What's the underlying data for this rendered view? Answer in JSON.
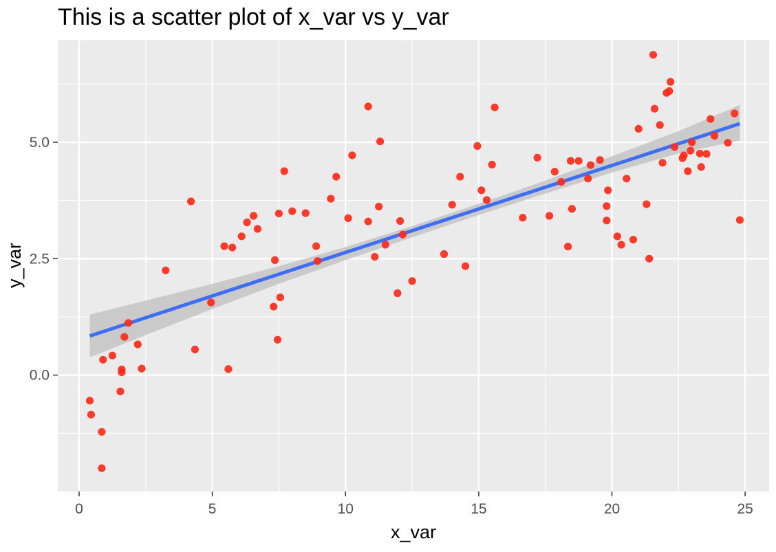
{
  "chart_data": {
    "type": "scatter",
    "title": "This is a scatter plot of x_var vs y_var",
    "xlabel": "x_var",
    "ylabel": "y_var",
    "xlim": [
      -0.8,
      25.9
    ],
    "ylim": [
      -2.5,
      7.2
    ],
    "xticks": [
      0,
      5,
      10,
      15,
      20,
      25
    ],
    "xtick_labels": [
      "0",
      "5",
      "10",
      "15",
      "20",
      "25"
    ],
    "yticks": [
      0,
      2.5,
      5
    ],
    "ytick_labels": [
      "0.0",
      "2.5",
      "5.0"
    ],
    "grid": true,
    "colors": {
      "points": "#ff2a1a",
      "fit_line": "#3d6ef5",
      "confidence_band": "#c4c4c4",
      "panel_background": "#ebebeb",
      "grid": "#ffffff"
    },
    "series": [
      {
        "points": [
          [
            0.4,
            -0.55
          ],
          [
            0.45,
            -0.85
          ],
          [
            0.85,
            -1.22
          ],
          [
            0.85,
            -2.0
          ],
          [
            0.9,
            0.33
          ],
          [
            1.25,
            0.42
          ],
          [
            1.6,
            0.12
          ],
          [
            1.6,
            0.06
          ],
          [
            1.55,
            -0.35
          ],
          [
            1.7,
            0.82
          ],
          [
            1.85,
            1.12
          ],
          [
            2.2,
            0.66
          ],
          [
            2.35,
            0.14
          ],
          [
            3.25,
            2.25
          ],
          [
            4.2,
            3.73
          ],
          [
            4.35,
            0.55
          ],
          [
            4.95,
            1.56
          ],
          [
            5.45,
            2.77
          ],
          [
            5.6,
            0.13
          ],
          [
            5.75,
            2.74
          ],
          [
            6.1,
            2.98
          ],
          [
            6.3,
            3.28
          ],
          [
            6.55,
            3.42
          ],
          [
            6.7,
            3.14
          ],
          [
            7.35,
            2.47
          ],
          [
            7.3,
            1.47
          ],
          [
            7.45,
            0.76
          ],
          [
            7.5,
            3.47
          ],
          [
            7.55,
            1.67
          ],
          [
            7.7,
            4.38
          ],
          [
            8.0,
            3.52
          ],
          [
            8.5,
            3.48
          ],
          [
            8.9,
            2.77
          ],
          [
            8.95,
            2.45
          ],
          [
            9.45,
            3.79
          ],
          [
            9.65,
            4.26
          ],
          [
            10.1,
            3.37
          ],
          [
            10.25,
            4.72
          ],
          [
            10.85,
            3.3
          ],
          [
            10.85,
            5.77
          ],
          [
            11.1,
            2.54
          ],
          [
            11.25,
            3.62
          ],
          [
            11.3,
            5.02
          ],
          [
            11.5,
            2.8
          ],
          [
            11.95,
            1.76
          ],
          [
            12.05,
            3.31
          ],
          [
            12.15,
            3.02
          ],
          [
            12.5,
            2.02
          ],
          [
            13.7,
            2.6
          ],
          [
            14.0,
            3.66
          ],
          [
            14.3,
            4.26
          ],
          [
            14.5,
            2.34
          ],
          [
            14.95,
            4.92
          ],
          [
            15.1,
            3.97
          ],
          [
            15.3,
            3.76
          ],
          [
            15.5,
            4.52
          ],
          [
            15.6,
            5.75
          ],
          [
            16.65,
            3.38
          ],
          [
            17.2,
            4.67
          ],
          [
            17.65,
            3.42
          ],
          [
            17.85,
            4.37
          ],
          [
            18.1,
            4.15
          ],
          [
            18.35,
            2.76
          ],
          [
            18.45,
            4.6
          ],
          [
            18.5,
            3.57
          ],
          [
            18.75,
            4.6
          ],
          [
            19.1,
            4.22
          ],
          [
            19.2,
            4.51
          ],
          [
            19.55,
            4.62
          ],
          [
            19.8,
            3.32
          ],
          [
            19.8,
            3.63
          ],
          [
            19.85,
            3.97
          ],
          [
            20.2,
            2.98
          ],
          [
            20.35,
            2.8
          ],
          [
            20.55,
            4.22
          ],
          [
            20.8,
            2.91
          ],
          [
            21.0,
            5.29
          ],
          [
            21.3,
            3.67
          ],
          [
            21.4,
            2.5
          ],
          [
            21.55,
            6.88
          ],
          [
            21.6,
            5.72
          ],
          [
            21.8,
            5.37
          ],
          [
            21.9,
            4.56
          ],
          [
            22.05,
            6.06
          ],
          [
            22.15,
            6.1
          ],
          [
            22.2,
            6.3
          ],
          [
            22.35,
            4.9
          ],
          [
            22.65,
            4.66
          ],
          [
            22.7,
            4.72
          ],
          [
            22.85,
            4.38
          ],
          [
            22.95,
            4.82
          ],
          [
            23.0,
            5.0
          ],
          [
            23.3,
            4.76
          ],
          [
            23.35,
            4.47
          ],
          [
            23.55,
            4.75
          ],
          [
            23.7,
            5.5
          ],
          [
            23.85,
            5.14
          ],
          [
            24.35,
            4.99
          ],
          [
            24.6,
            5.62
          ],
          [
            24.8,
            3.33
          ]
        ]
      }
    ],
    "fit": {
      "x": [
        0.4,
        24.8
      ],
      "y": [
        0.84,
        5.4
      ],
      "band": {
        "x": [
          0.4,
          2.5,
          5,
          7.5,
          10,
          12.5,
          15,
          17.5,
          20,
          22.5,
          24.8
        ],
        "lower": [
          0.38,
          0.86,
          1.42,
          1.96,
          2.47,
          2.96,
          3.44,
          3.9,
          4.35,
          4.76,
          5.04
        ],
        "upper": [
          1.3,
          1.6,
          1.96,
          2.34,
          2.75,
          3.2,
          3.68,
          4.18,
          4.7,
          5.24,
          5.8
        ]
      }
    }
  }
}
